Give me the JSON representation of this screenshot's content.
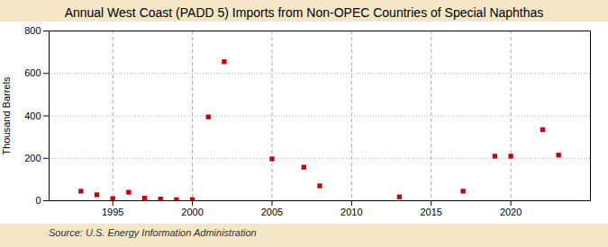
{
  "chart_data": {
    "type": "scatter",
    "title": "Annual West Coast (PADD 5) Imports from Non-OPEC Countries of Special Naphthas",
    "ylabel": "Thousand Barrels",
    "annotations": [
      "Source: U.S. Energy Information Administration"
    ],
    "x": [
      1993,
      1994,
      1995,
      1996,
      1997,
      1998,
      1999,
      2000,
      2001,
      2002,
      2005,
      2007,
      2008,
      2013,
      2017,
      2019,
      2020,
      2022,
      2023
    ],
    "values": [
      45,
      28,
      10,
      40,
      12,
      8,
      5,
      5,
      395,
      655,
      197,
      158,
      70,
      18,
      45,
      210,
      210,
      335,
      215
    ],
    "color": "#cc0000",
    "marker": "square",
    "xlim": [
      1991,
      2025
    ],
    "ylim": [
      0,
      800
    ],
    "xticks": [
      1995,
      2000,
      2005,
      2010,
      2015,
      2020
    ],
    "yticks": [
      0,
      200,
      400,
      600,
      800
    ],
    "grid": true
  }
}
